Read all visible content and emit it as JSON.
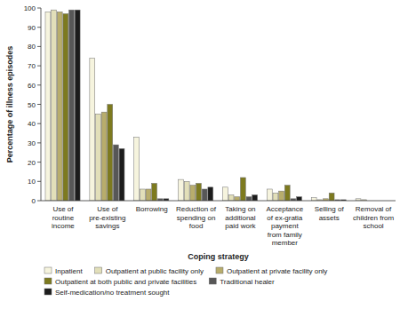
{
  "chart_data": {
    "type": "bar",
    "x_label": "Coping strategy",
    "y_label": "Percentage of illness episodes",
    "categories": [
      "Use of routine income",
      "Use of pre-existing savings",
      "Borrowing",
      "Reduction of spending on food",
      "Taking on additional paid work",
      "Acceptance of ex-gratia payment from family member",
      "Selling of assets",
      "Removal of children from school"
    ],
    "series": [
      {
        "name": "Inpatient",
        "color": "#f6f4de",
        "values": [
          98,
          74,
          33,
          11,
          7,
          6,
          1.5,
          1
        ]
      },
      {
        "name": "Outpatient at public facility only",
        "color": "#e2dfb9",
        "values": [
          99,
          45,
          6,
          10,
          3,
          4,
          0.5,
          0.5
        ]
      },
      {
        "name": "Outpatient at private facility only",
        "color": "#b8ad6c",
        "values": [
          98,
          46,
          6,
          8,
          2,
          5,
          1,
          0
        ]
      },
      {
        "name": "Outpatient at both public and private facilities",
        "color": "#7d7a1f",
        "values": [
          97,
          50,
          9,
          9,
          12,
          8,
          4,
          0
        ]
      },
      {
        "name": "Traditional healer",
        "color": "#575757",
        "values": [
          99,
          29,
          1,
          6,
          2,
          1,
          0.5,
          0
        ]
      },
      {
        "name": "Self-medication/no treatment sought",
        "color": "#1c1c1c",
        "values": [
          99,
          27,
          1,
          7,
          3,
          2,
          0.5,
          0
        ]
      }
    ],
    "ylim": [
      0,
      100
    ],
    "yticks": [
      0,
      10,
      20,
      30,
      40,
      50,
      60,
      70,
      80,
      90,
      100
    ],
    "grid": false,
    "legend": "bottom"
  }
}
